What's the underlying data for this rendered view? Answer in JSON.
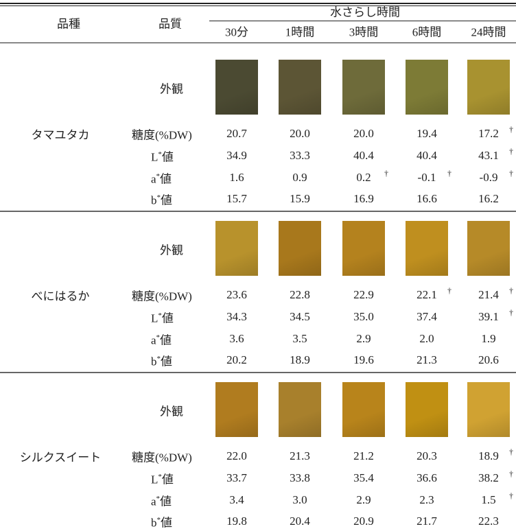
{
  "header": {
    "variety": "品種",
    "quality": "品質",
    "group": "水さらし時間",
    "times": [
      "30分",
      "1時間",
      "3時間",
      "6時間",
      "24時間"
    ]
  },
  "sections": [
    {
      "name": "タマユタカ",
      "appearance": "外観",
      "swatches": [
        "#4b4a32",
        "#5c5535",
        "#6e6b3a",
        "#7d7b36",
        "#a89230"
      ],
      "rows": [
        {
          "label": {
            "base": "糖度(%DW)"
          },
          "cells": [
            "20.7",
            "20.0",
            "20.0",
            "19.4",
            {
              "value": "17.2",
              "mark": "†"
            }
          ]
        },
        {
          "label": {
            "base": "L",
            "sup": "*",
            "suffix": "値"
          },
          "cells": [
            "34.9",
            "33.3",
            "40.4",
            "40.4",
            {
              "value": "43.1",
              "mark": "†"
            }
          ]
        },
        {
          "label": {
            "base": "a",
            "sup": "*",
            "suffix": "値"
          },
          "cells": [
            "1.6",
            "0.9",
            {
              "value": "0.2",
              "mark": "†"
            },
            {
              "value": "-0.1",
              "mark": "†"
            },
            {
              "value": "-0.9",
              "mark": "†"
            }
          ]
        },
        {
          "label": {
            "base": "b",
            "sup": "*",
            "suffix": "値"
          },
          "cells": [
            "15.7",
            "15.9",
            "16.9",
            "16.6",
            "16.2"
          ]
        }
      ]
    },
    {
      "name": "べにはるか",
      "appearance": "外観",
      "swatches": [
        "#b8922c",
        "#a8781c",
        "#b4821e",
        "#bf8f1f",
        "#b68a28"
      ],
      "rows": [
        {
          "label": {
            "base": "糖度(%DW)"
          },
          "cells": [
            "23.6",
            "22.8",
            "22.9",
            {
              "value": "22.1",
              "mark": "†"
            },
            {
              "value": "21.4",
              "mark": "†"
            }
          ]
        },
        {
          "label": {
            "base": "L",
            "sup": "*",
            "suffix": "値"
          },
          "cells": [
            "34.3",
            "34.5",
            "35.0",
            "37.4",
            {
              "value": "39.1",
              "mark": "†"
            }
          ]
        },
        {
          "label": {
            "base": "a",
            "sup": "*",
            "suffix": "値"
          },
          "cells": [
            "3.6",
            "3.5",
            "2.9",
            "2.0",
            "1.9"
          ]
        },
        {
          "label": {
            "base": "b",
            "sup": "*",
            "suffix": "値"
          },
          "cells": [
            "20.2",
            "18.9",
            "19.6",
            "21.3",
            "20.6"
          ]
        }
      ]
    },
    {
      "name": "シルクスイート",
      "appearance": "外観",
      "swatches": [
        "#b07c1f",
        "#a8802c",
        "#b8841b",
        "#c09013",
        "#d0a232"
      ],
      "rows": [
        {
          "label": {
            "base": "糖度(%DW)"
          },
          "cells": [
            "22.0",
            "21.3",
            "21.2",
            "20.3",
            {
              "value": "18.9",
              "mark": "†"
            }
          ]
        },
        {
          "label": {
            "base": "L",
            "sup": "*",
            "suffix": "値"
          },
          "cells": [
            "33.7",
            "33.8",
            "35.4",
            "36.6",
            {
              "value": "38.2",
              "mark": "†"
            }
          ]
        },
        {
          "label": {
            "base": "a",
            "sup": "*",
            "suffix": "値"
          },
          "cells": [
            "3.4",
            "3.0",
            "2.9",
            "2.3",
            {
              "value": "1.5",
              "mark": "†"
            }
          ]
        },
        {
          "label": {
            "base": "b",
            "sup": "*",
            "suffix": "値"
          },
          "cells": [
            "19.8",
            "20.4",
            "20.9",
            "21.7",
            "22.3"
          ]
        }
      ]
    }
  ]
}
